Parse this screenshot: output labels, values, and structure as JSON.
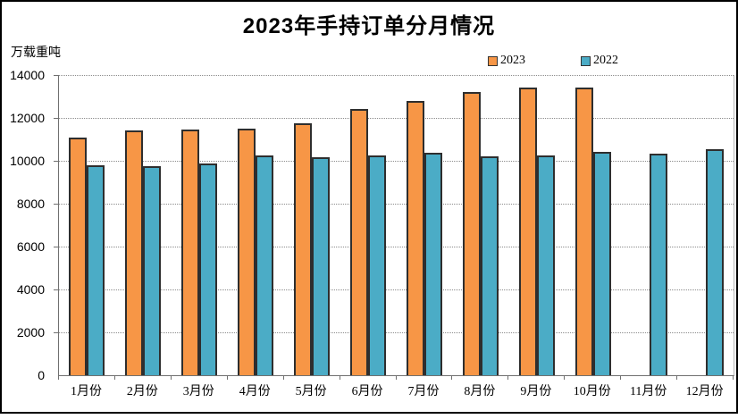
{
  "title": "2023年手持订单分月情况",
  "unit_label": "万载重吨",
  "legend": [
    {
      "label": "2023",
      "color": "#F79646"
    },
    {
      "label": "2022",
      "color": "#4BACC6"
    }
  ],
  "colors": {
    "bar_2023": "#F79646",
    "bar_2022": "#4BACC6",
    "bar_border": "#2e2e2e",
    "gridline": "#8c8c8c",
    "axis": "#707070",
    "frame_border": "#000000"
  },
  "chart_data": {
    "type": "bar",
    "title": "2023年手持订单分月情况",
    "ylabel": "万载重吨",
    "xlabel": "",
    "categories": [
      "1月份",
      "2月份",
      "3月份",
      "4月份",
      "5月份",
      "6月份",
      "7月份",
      "8月份",
      "9月份",
      "10月份",
      "11月份",
      "12月份"
    ],
    "series": [
      {
        "name": "2023",
        "color": "#F79646",
        "values": [
          11100,
          11400,
          11450,
          11500,
          11750,
          12400,
          12800,
          13200,
          13400,
          13400,
          null,
          null
        ]
      },
      {
        "name": "2022",
        "color": "#4BACC6",
        "values": [
          9800,
          9770,
          9870,
          10250,
          10170,
          10270,
          10370,
          10200,
          10240,
          10430,
          10330,
          10560
        ]
      }
    ],
    "ylim": [
      0,
      14000
    ],
    "ytick_step": 2000,
    "yticks": [
      0,
      2000,
      4000,
      6000,
      8000,
      10000,
      12000,
      14000
    ],
    "grid": "horizontal-dotted",
    "legend_position": "top-right-inside"
  }
}
